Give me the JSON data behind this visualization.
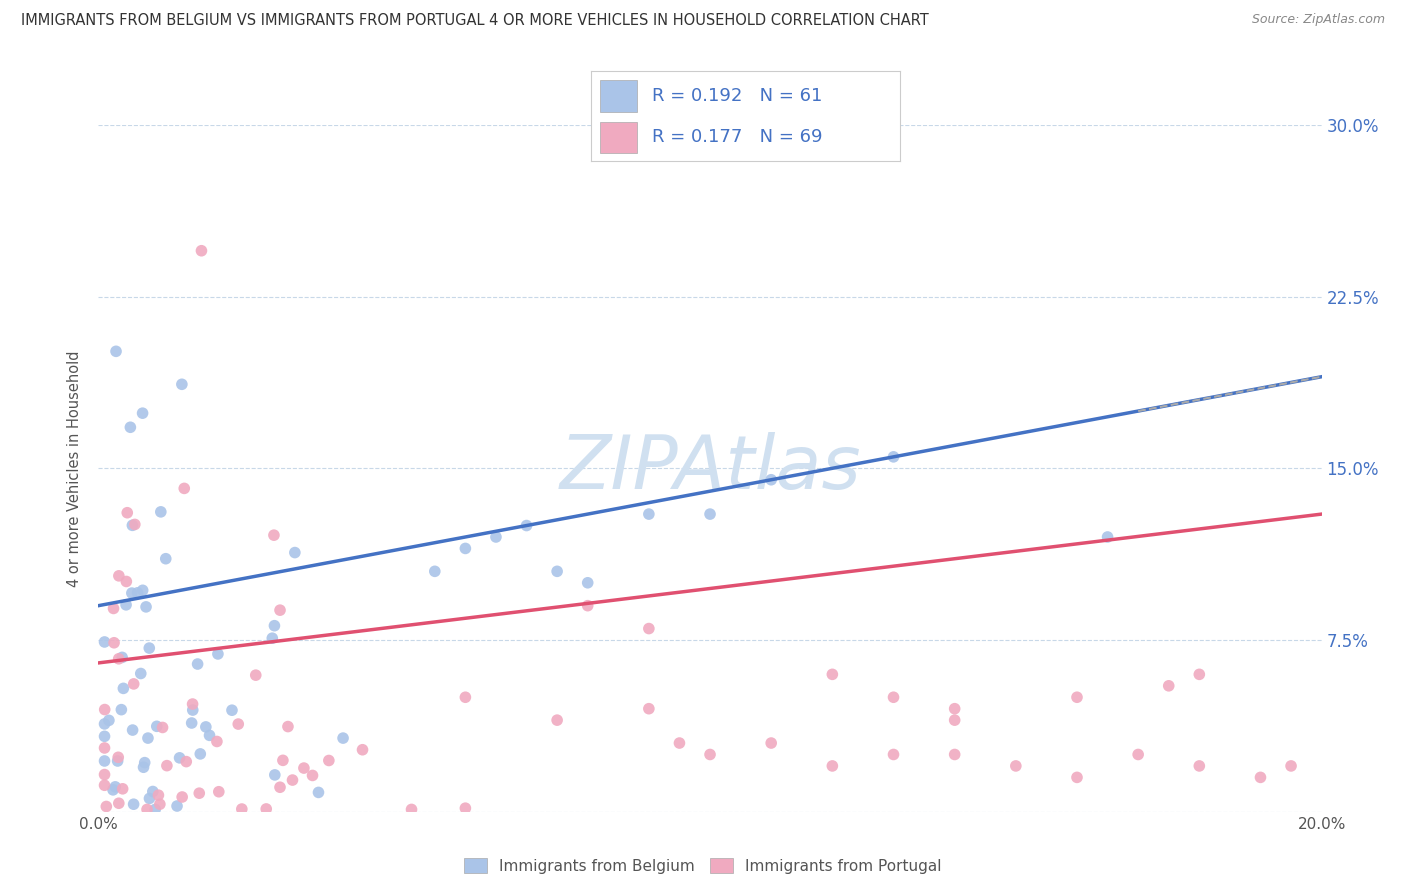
{
  "title": "IMMIGRANTS FROM BELGIUM VS IMMIGRANTS FROM PORTUGAL 4 OR MORE VEHICLES IN HOUSEHOLD CORRELATION CHART",
  "source": "Source: ZipAtlas.com",
  "ylabel": "4 or more Vehicles in Household",
  "xlim": [
    0.0,
    0.2
  ],
  "ylim": [
    0.0,
    0.3
  ],
  "xticks": [
    0.0,
    0.05,
    0.1,
    0.15,
    0.2
  ],
  "xtick_labels": [
    "0.0%",
    "",
    "",
    "",
    "20.0%"
  ],
  "yticks": [
    0.0,
    0.075,
    0.15,
    0.225,
    0.3
  ],
  "ytick_labels": [
    "",
    "7.5%",
    "15.0%",
    "22.5%",
    "30.0%"
  ],
  "belgium_R": 0.192,
  "belgium_N": 61,
  "portugal_R": 0.177,
  "portugal_N": 69,
  "belgium_color": "#aac4e8",
  "portugal_color": "#f0aac0",
  "belgium_line_color": "#4472C4",
  "portugal_line_color": "#E05070",
  "background_color": "#ffffff",
  "grid_color": "#c8d8e8",
  "title_color": "#333333",
  "source_color": "#888888",
  "legend_color": "#4472C4",
  "watermark_color": "#d0e0f0",
  "belgium_trend_start_y": 0.09,
  "belgium_trend_end_y": 0.19,
  "portugal_trend_start_y": 0.065,
  "portugal_trend_end_y": 0.13
}
